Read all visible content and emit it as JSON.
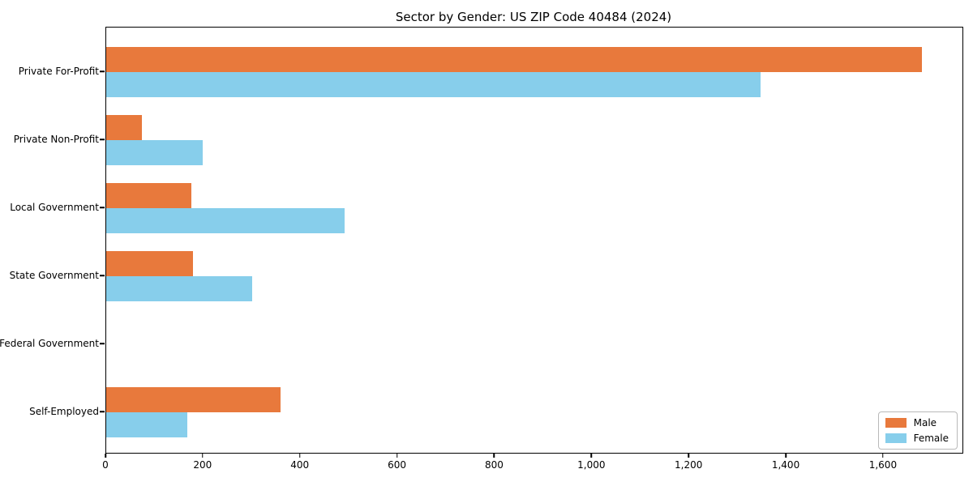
{
  "chart_data": {
    "type": "bar",
    "orientation": "horizontal",
    "title": "Sector by Gender: US ZIP Code 40484 (2024)",
    "categories": [
      "Private For-Profit",
      "Private Non-Profit",
      "Local Government",
      "State Government",
      "Federal Government",
      "Self-Employed"
    ],
    "series": [
      {
        "name": "Male",
        "color": "#E8793C",
        "values": [
          1678,
          73,
          175,
          178,
          0,
          358
        ]
      },
      {
        "name": "Female",
        "color": "#87CEEB",
        "values": [
          1347,
          198,
          490,
          300,
          0,
          166
        ]
      }
    ],
    "xlabel": "",
    "ylabel": "",
    "xlim": [
      0,
      1762
    ],
    "xticks": [
      0,
      200,
      400,
      600,
      800,
      1000,
      1200,
      1400,
      1600
    ],
    "xtick_labels": [
      "0",
      "200",
      "400",
      "600",
      "800",
      "1,000",
      "1,200",
      "1,400",
      "1,600"
    ],
    "grid": false,
    "legend_position": "lower right",
    "background_color": "#ffffff",
    "spine_color": "#000000"
  }
}
